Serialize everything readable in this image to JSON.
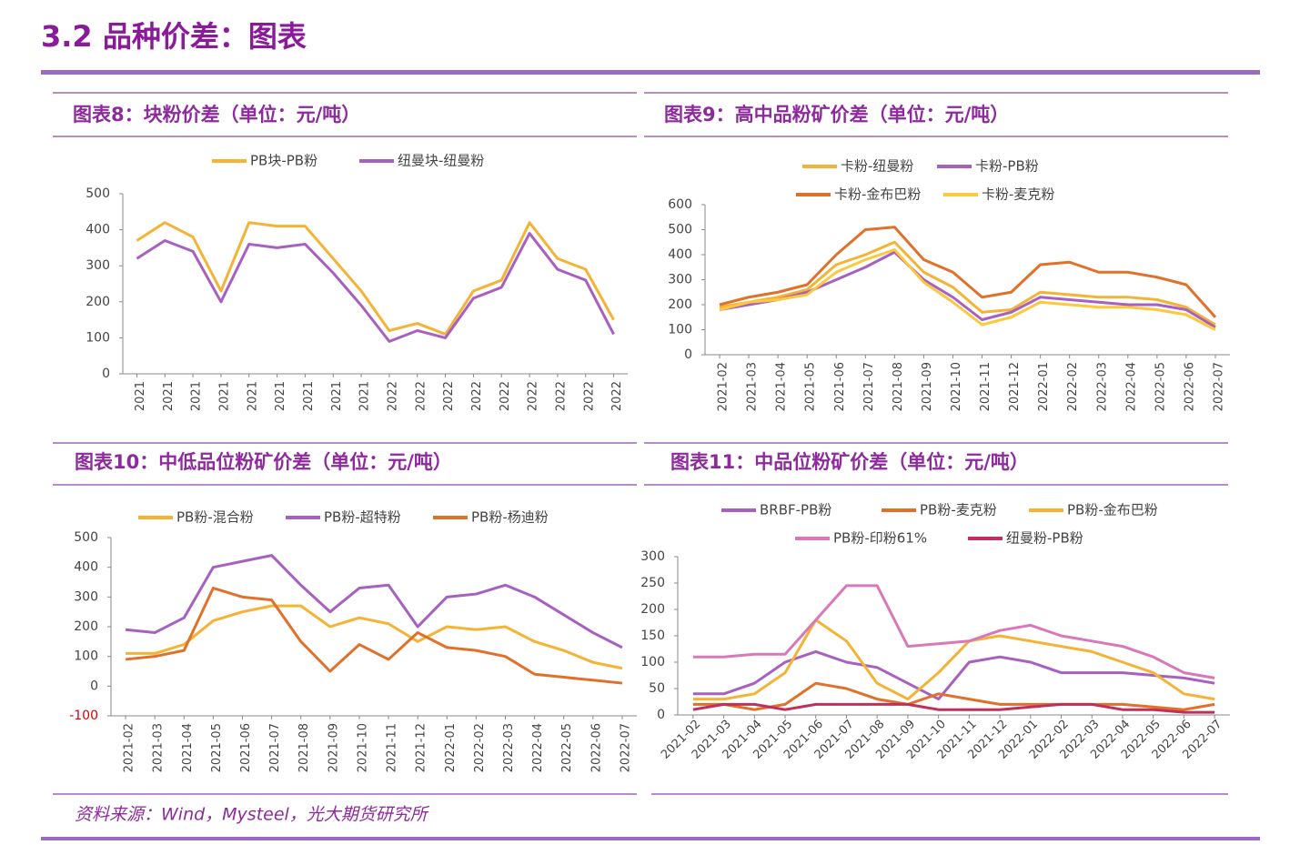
{
  "title": "3.2 品种价差：图表",
  "source": "资料来源：Wind，Mysteel，光大期货研究所",
  "chart_data": [
    {
      "type": "line",
      "title": "图表8：块粉价差（单位：元/吨）",
      "categories": [
        "2021",
        "2021",
        "2021",
        "2021",
        "2021",
        "2021",
        "2021",
        "2021",
        "2021",
        "2022",
        "2022",
        "2022",
        "2022",
        "2022",
        "2022",
        "2022",
        "2022",
        "2022"
      ],
      "series": [
        {
          "name": "PB块-PB粉",
          "color": "#f5b335",
          "values": [
            370,
            420,
            380,
            230,
            420,
            410,
            410,
            320,
            230,
            120,
            140,
            110,
            230,
            260,
            420,
            320,
            290,
            150
          ]
        },
        {
          "name": "纽曼块-纽曼粉",
          "color": "#a860c0",
          "values": [
            320,
            370,
            340,
            200,
            360,
            350,
            360,
            280,
            190,
            90,
            120,
            100,
            210,
            240,
            390,
            290,
            260,
            110
          ]
        }
      ],
      "ylim": [
        0,
        500
      ],
      "yticks": [
        0,
        100,
        200,
        300,
        400,
        500
      ]
    },
    {
      "type": "line",
      "title": "图表9：高中品粉矿价差（单位：元/吨）",
      "categories": [
        "2021-02",
        "2021-03",
        "2021-04",
        "2021-05",
        "2021-06",
        "2021-07",
        "2021-08",
        "2021-09",
        "2021-10",
        "2021-11",
        "2021-12",
        "2022-01",
        "2022-02",
        "2022-03",
        "2022-04",
        "2022-05",
        "2022-06",
        "2022-07"
      ],
      "series": [
        {
          "name": "卡粉-纽曼粉",
          "color": "#f5b335",
          "values": [
            190,
            210,
            230,
            260,
            360,
            400,
            450,
            330,
            270,
            170,
            180,
            250,
            240,
            230,
            230,
            220,
            190,
            120
          ]
        },
        {
          "name": "卡粉-PB粉",
          "color": "#a860c0",
          "values": [
            180,
            200,
            220,
            250,
            300,
            350,
            410,
            300,
            230,
            140,
            170,
            230,
            220,
            210,
            200,
            200,
            180,
            110
          ]
        },
        {
          "name": "卡粉-金布巴粉",
          "color": "#e0702a",
          "values": [
            200,
            230,
            250,
            280,
            400,
            500,
            510,
            380,
            330,
            230,
            250,
            360,
            370,
            330,
            330,
            310,
            280,
            150
          ]
        },
        {
          "name": "卡粉-麦克粉",
          "color": "#fcc83c",
          "values": [
            180,
            210,
            220,
            240,
            330,
            380,
            420,
            290,
            210,
            120,
            150,
            210,
            200,
            190,
            190,
            180,
            160,
            100
          ]
        }
      ],
      "ylim": [
        0,
        600
      ],
      "yticks": [
        0,
        100,
        200,
        300,
        400,
        500,
        600
      ]
    },
    {
      "type": "line",
      "title": "图表10：中低品位粉矿价差（单位：元/吨）",
      "categories": [
        "2021-02",
        "2021-03",
        "2021-04",
        "2021-05",
        "2021-06",
        "2021-07",
        "2021-08",
        "2021-09",
        "2021-10",
        "2021-11",
        "2021-12",
        "2022-01",
        "2022-02",
        "2022-03",
        "2022-04",
        "2022-05",
        "2022-06",
        "2022-07"
      ],
      "series": [
        {
          "name": "PB粉-混合粉",
          "color": "#f5b335",
          "values": [
            110,
            110,
            140,
            220,
            250,
            270,
            270,
            200,
            230,
            210,
            150,
            200,
            190,
            200,
            150,
            120,
            80,
            60
          ]
        },
        {
          "name": "PB粉-超特粉",
          "color": "#a860c0",
          "values": [
            190,
            180,
            230,
            400,
            420,
            440,
            340,
            250,
            330,
            340,
            200,
            300,
            310,
            340,
            300,
            240,
            180,
            130
          ]
        },
        {
          "name": "PB粉-杨迪粉",
          "color": "#e0702a",
          "values": [
            90,
            100,
            120,
            330,
            300,
            290,
            150,
            50,
            140,
            90,
            180,
            130,
            120,
            100,
            40,
            30,
            20,
            10
          ]
        }
      ],
      "ylim": [
        -100,
        500
      ],
      "yticks": [
        -100,
        0,
        100,
        200,
        300,
        400,
        500
      ]
    },
    {
      "type": "line",
      "title": "图表11：中品位粉矿价差（单位：元/吨）",
      "categories": [
        "2021-02",
        "2021-03",
        "2021-04",
        "2021-05",
        "2021-06",
        "2021-07",
        "2021-08",
        "2021-09",
        "2021-10",
        "2021-11",
        "2021-12",
        "2022-01",
        "2022-02",
        "2022-03",
        "2022-04",
        "2022-05",
        "2022-06",
        "2022-07"
      ],
      "series": [
        {
          "name": "BRBF-PB粉",
          "color": "#a860c0",
          "values": [
            40,
            40,
            60,
            100,
            120,
            100,
            90,
            60,
            30,
            100,
            110,
            100,
            80,
            80,
            80,
            75,
            70,
            60
          ]
        },
        {
          "name": "PB粉-麦克粉",
          "color": "#e0702a",
          "values": [
            20,
            20,
            10,
            20,
            60,
            50,
            30,
            20,
            40,
            30,
            20,
            20,
            20,
            20,
            20,
            15,
            10,
            20
          ]
        },
        {
          "name": "PB粉-金布巴粉",
          "color": "#f5b335",
          "values": [
            30,
            30,
            40,
            80,
            180,
            140,
            60,
            30,
            80,
            140,
            150,
            140,
            130,
            120,
            100,
            80,
            40,
            30
          ]
        },
        {
          "name": "PB粉-印粉61%",
          "color": "#d978b8",
          "values": [
            110,
            110,
            115,
            115,
            180,
            245,
            245,
            130,
            135,
            140,
            160,
            170,
            150,
            140,
            130,
            110,
            80,
            70
          ]
        },
        {
          "name": "纽曼粉-PB粉",
          "color": "#c0305a",
          "values": [
            10,
            20,
            20,
            10,
            20,
            20,
            20,
            20,
            10,
            10,
            10,
            15,
            20,
            20,
            10,
            10,
            5,
            5
          ]
        }
      ],
      "ylim": [
        0,
        300
      ],
      "yticks": [
        0,
        50,
        100,
        150,
        200,
        250,
        300
      ]
    }
  ]
}
